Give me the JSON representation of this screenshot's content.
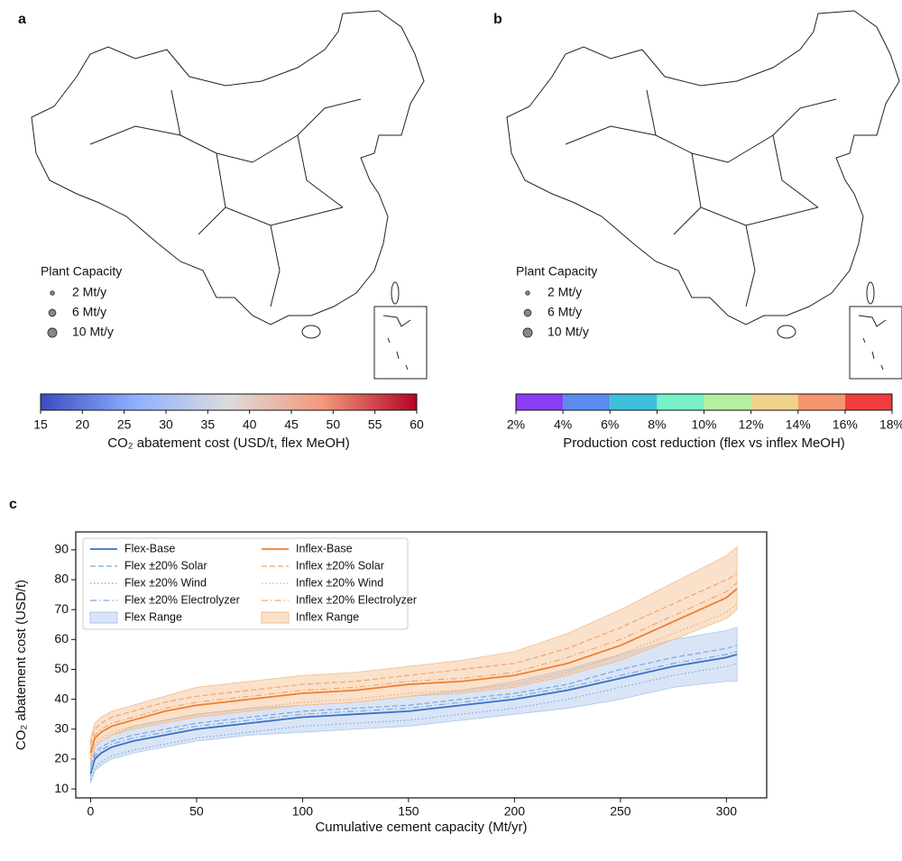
{
  "chart_data": [
    {
      "type": "map",
      "panel_label": "a",
      "legend_title": "Plant Capacity",
      "size_legend": [
        {
          "value": 2,
          "label": "2 Mt/y"
        },
        {
          "value": 6,
          "label": "6 Mt/y"
        },
        {
          "value": 10,
          "label": "10 Mt/y"
        }
      ],
      "colorbar": {
        "kind": "continuous",
        "label": "CO₂ abatement cost (USD/t, flex MeOH)",
        "lim": [
          15,
          60
        ],
        "ticks": [
          15,
          20,
          25,
          30,
          35,
          40,
          45,
          50,
          55,
          60
        ],
        "colors": [
          "#3b4cc0",
          "#8db0fe",
          "#dddcdc",
          "#f4987a",
          "#b40426"
        ]
      }
    },
    {
      "type": "map",
      "panel_label": "b",
      "legend_title": "Plant Capacity",
      "size_legend": [
        {
          "value": 2,
          "label": "2 Mt/y"
        },
        {
          "value": 6,
          "label": "6 Mt/y"
        },
        {
          "value": 10,
          "label": "10 Mt/y"
        }
      ],
      "colorbar": {
        "kind": "discrete",
        "label": "Production cost reduction (flex vs inflex MeOH)",
        "lim": [
          2,
          18
        ],
        "ticks": [
          {
            "value": 2,
            "label": "2%"
          },
          {
            "value": 4,
            "label": "4%"
          },
          {
            "value": 6,
            "label": "6%"
          },
          {
            "value": 8,
            "label": "8%"
          },
          {
            "value": 10,
            "label": "10%"
          },
          {
            "value": 12,
            "label": "12%"
          },
          {
            "value": 14,
            "label": "14%"
          },
          {
            "value": 16,
            "label": "16%"
          },
          {
            "value": 18,
            "label": "18%"
          }
        ],
        "colors": [
          "#8b3cf7",
          "#5a8cf0",
          "#3cc0dc",
          "#78f0c8",
          "#b4f0a0",
          "#f0d28c",
          "#f5966e",
          "#f03c3c"
        ]
      }
    },
    {
      "type": "line",
      "panel_label": "c",
      "xlabel": "Cumulative cement capacity (Mt/yr)",
      "ylabel": "CO₂ abatement cost (USD/t)",
      "xlim": [
        -7,
        319
      ],
      "ylim": [
        7,
        96
      ],
      "xticks": [
        0,
        50,
        100,
        150,
        200,
        250,
        300
      ],
      "yticks": [
        10,
        20,
        30,
        40,
        50,
        60,
        70,
        80,
        90
      ],
      "legend_loc": "upper left",
      "x": [
        0,
        2,
        5,
        10,
        20,
        35,
        50,
        75,
        100,
        125,
        150,
        175,
        200,
        225,
        250,
        275,
        300,
        305
      ],
      "series": [
        {
          "name": "Flex-Base",
          "color": "#3a70c4",
          "dash": "solid",
          "values": [
            15,
            20,
            22,
            24,
            26,
            28,
            30,
            32,
            34,
            35,
            36,
            38,
            40,
            43,
            47,
            51,
            54,
            55
          ]
        },
        {
          "name": "Flex ±20% Solar",
          "color": "#7fa6de",
          "dash": "dashed",
          "values": [
            18,
            22,
            24,
            26,
            28,
            30,
            32,
            34,
            36,
            37,
            38,
            40,
            42,
            45,
            50,
            54,
            57,
            58
          ]
        },
        {
          "name": "Flex ±20% Wind",
          "color": "#7fa6de",
          "dash": "dotted",
          "values": [
            13,
            17,
            19,
            21,
            23,
            25,
            27,
            29,
            31,
            32,
            33,
            35,
            37,
            40,
            44,
            48,
            51,
            52
          ]
        },
        {
          "name": "Flex ±20% Electrolyzer",
          "color": "#7fa6de",
          "dash": "dashdot",
          "values": [
            16,
            21,
            23,
            25,
            27,
            29,
            31,
            33,
            35,
            36,
            37,
            39,
            41,
            44,
            48,
            52,
            55,
            56
          ]
        },
        {
          "name": "Flex Range",
          "color": "#aac6ec",
          "kind": "range",
          "lower": [
            12,
            16,
            18,
            20,
            22,
            24,
            26,
            28,
            29,
            30,
            31,
            33,
            35,
            37,
            40,
            44,
            46,
            46
          ],
          "upper": [
            19,
            24,
            26,
            28,
            31,
            33,
            35,
            37,
            38,
            39,
            41,
            43,
            46,
            50,
            55,
            60,
            63,
            64
          ]
        },
        {
          "name": "Inflex-Base",
          "color": "#ee7f32",
          "dash": "solid",
          "values": [
            22,
            27,
            29,
            31,
            33,
            36,
            38,
            40,
            42,
            43,
            45,
            46,
            48,
            52,
            58,
            66,
            74,
            77
          ]
        },
        {
          "name": "Inflex ±20% Solar",
          "color": "#f3a66e",
          "dash": "dashed",
          "values": [
            25,
            30,
            32,
            34,
            36,
            39,
            41,
            43,
            45,
            46,
            48,
            50,
            52,
            57,
            64,
            72,
            80,
            82
          ]
        },
        {
          "name": "Inflex ±20% Wind",
          "color": "#f3a66e",
          "dash": "dotted",
          "values": [
            20,
            25,
            27,
            29,
            31,
            33,
            35,
            37,
            39,
            40,
            42,
            43,
            45,
            49,
            55,
            62,
            69,
            72
          ]
        },
        {
          "name": "Inflex ±20% Electrolyzer",
          "color": "#f3a66e",
          "dash": "dashdot",
          "values": [
            23,
            28,
            30,
            32,
            34,
            37,
            39,
            41,
            43,
            44,
            46,
            47,
            49,
            54,
            60,
            68,
            76,
            79
          ]
        },
        {
          "name": "Inflex Range",
          "color": "#f5bc8c",
          "kind": "range",
          "lower": [
            19,
            24,
            26,
            28,
            30,
            32,
            34,
            36,
            38,
            39,
            41,
            42,
            44,
            48,
            53,
            60,
            67,
            70
          ],
          "upper": [
            27,
            32,
            34,
            36,
            38,
            41,
            44,
            46,
            48,
            49,
            51,
            53,
            56,
            62,
            70,
            79,
            88,
            91
          ]
        }
      ]
    }
  ]
}
